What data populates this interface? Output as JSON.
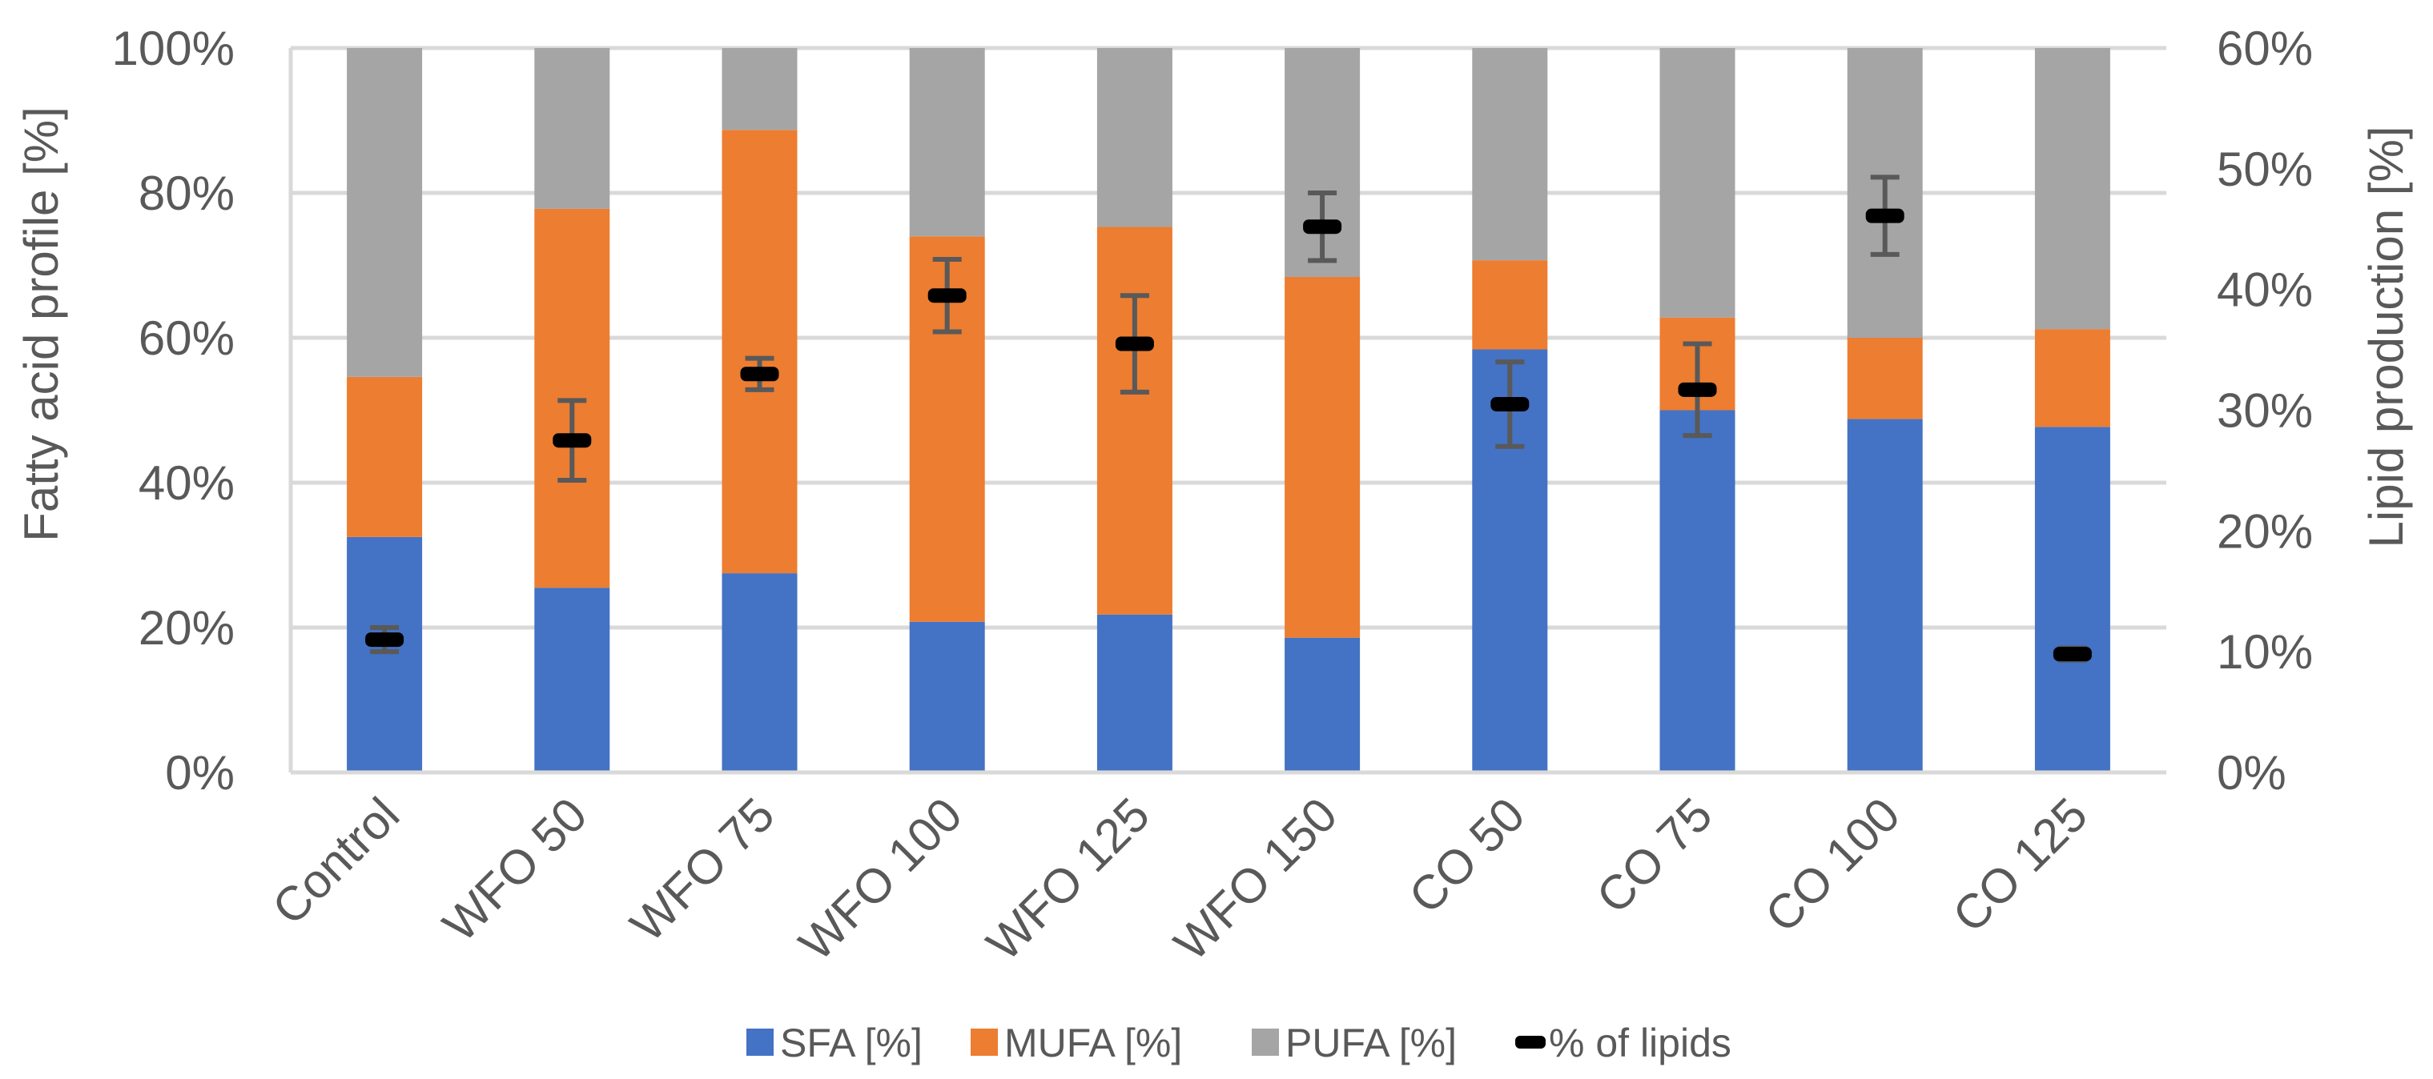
{
  "chart_data": {
    "type": "bar",
    "stacked": true,
    "categories": [
      "Control",
      "WFO 50",
      "WFO 75",
      "WFO 100",
      "WFO 125",
      "WFO 150",
      "CO 50",
      "CO 75",
      "CO 100",
      "CO 125"
    ],
    "series": [
      {
        "name": "SFA [%]",
        "color": "#4472C4",
        "values": [
          32.5,
          25.5,
          27.5,
          20.8,
          21.8,
          18.6,
          58.4,
          50.0,
          48.8,
          47.7
        ]
      },
      {
        "name": "MUFA [%]",
        "color": "#ED7D31",
        "values": [
          22.1,
          52.3,
          61.2,
          53.2,
          53.5,
          49.8,
          12.3,
          12.8,
          11.2,
          13.5
        ]
      },
      {
        "name": "PUFA [%]",
        "color": "#A5A5A5",
        "values": [
          45.4,
          22.2,
          11.3,
          26.0,
          24.7,
          31.6,
          29.3,
          37.2,
          40.0,
          38.8
        ]
      }
    ],
    "lipid_series": {
      "name": "% of lipids",
      "color": "#000000",
      "errorbar_color": "#595959",
      "values": [
        11.0,
        27.5,
        33.0,
        39.5,
        35.5,
        45.2,
        30.5,
        31.7,
        46.1,
        9.8
      ],
      "errors": [
        1.0,
        3.3,
        1.3,
        3.0,
        4.0,
        2.8,
        3.5,
        3.8,
        3.2,
        0.5
      ]
    },
    "ylabel": "Fatty acid profile [%]",
    "y2label": "Lipid production [%]",
    "ylim": [
      0,
      100
    ],
    "y2lim": [
      0,
      60
    ],
    "yticks": [
      "0%",
      "20%",
      "40%",
      "60%",
      "80%",
      "100%"
    ],
    "y2ticks": [
      "0%",
      "10%",
      "20%",
      "30%",
      "40%",
      "50%",
      "60%"
    ],
    "grid": true,
    "legend_position": "bottom"
  }
}
